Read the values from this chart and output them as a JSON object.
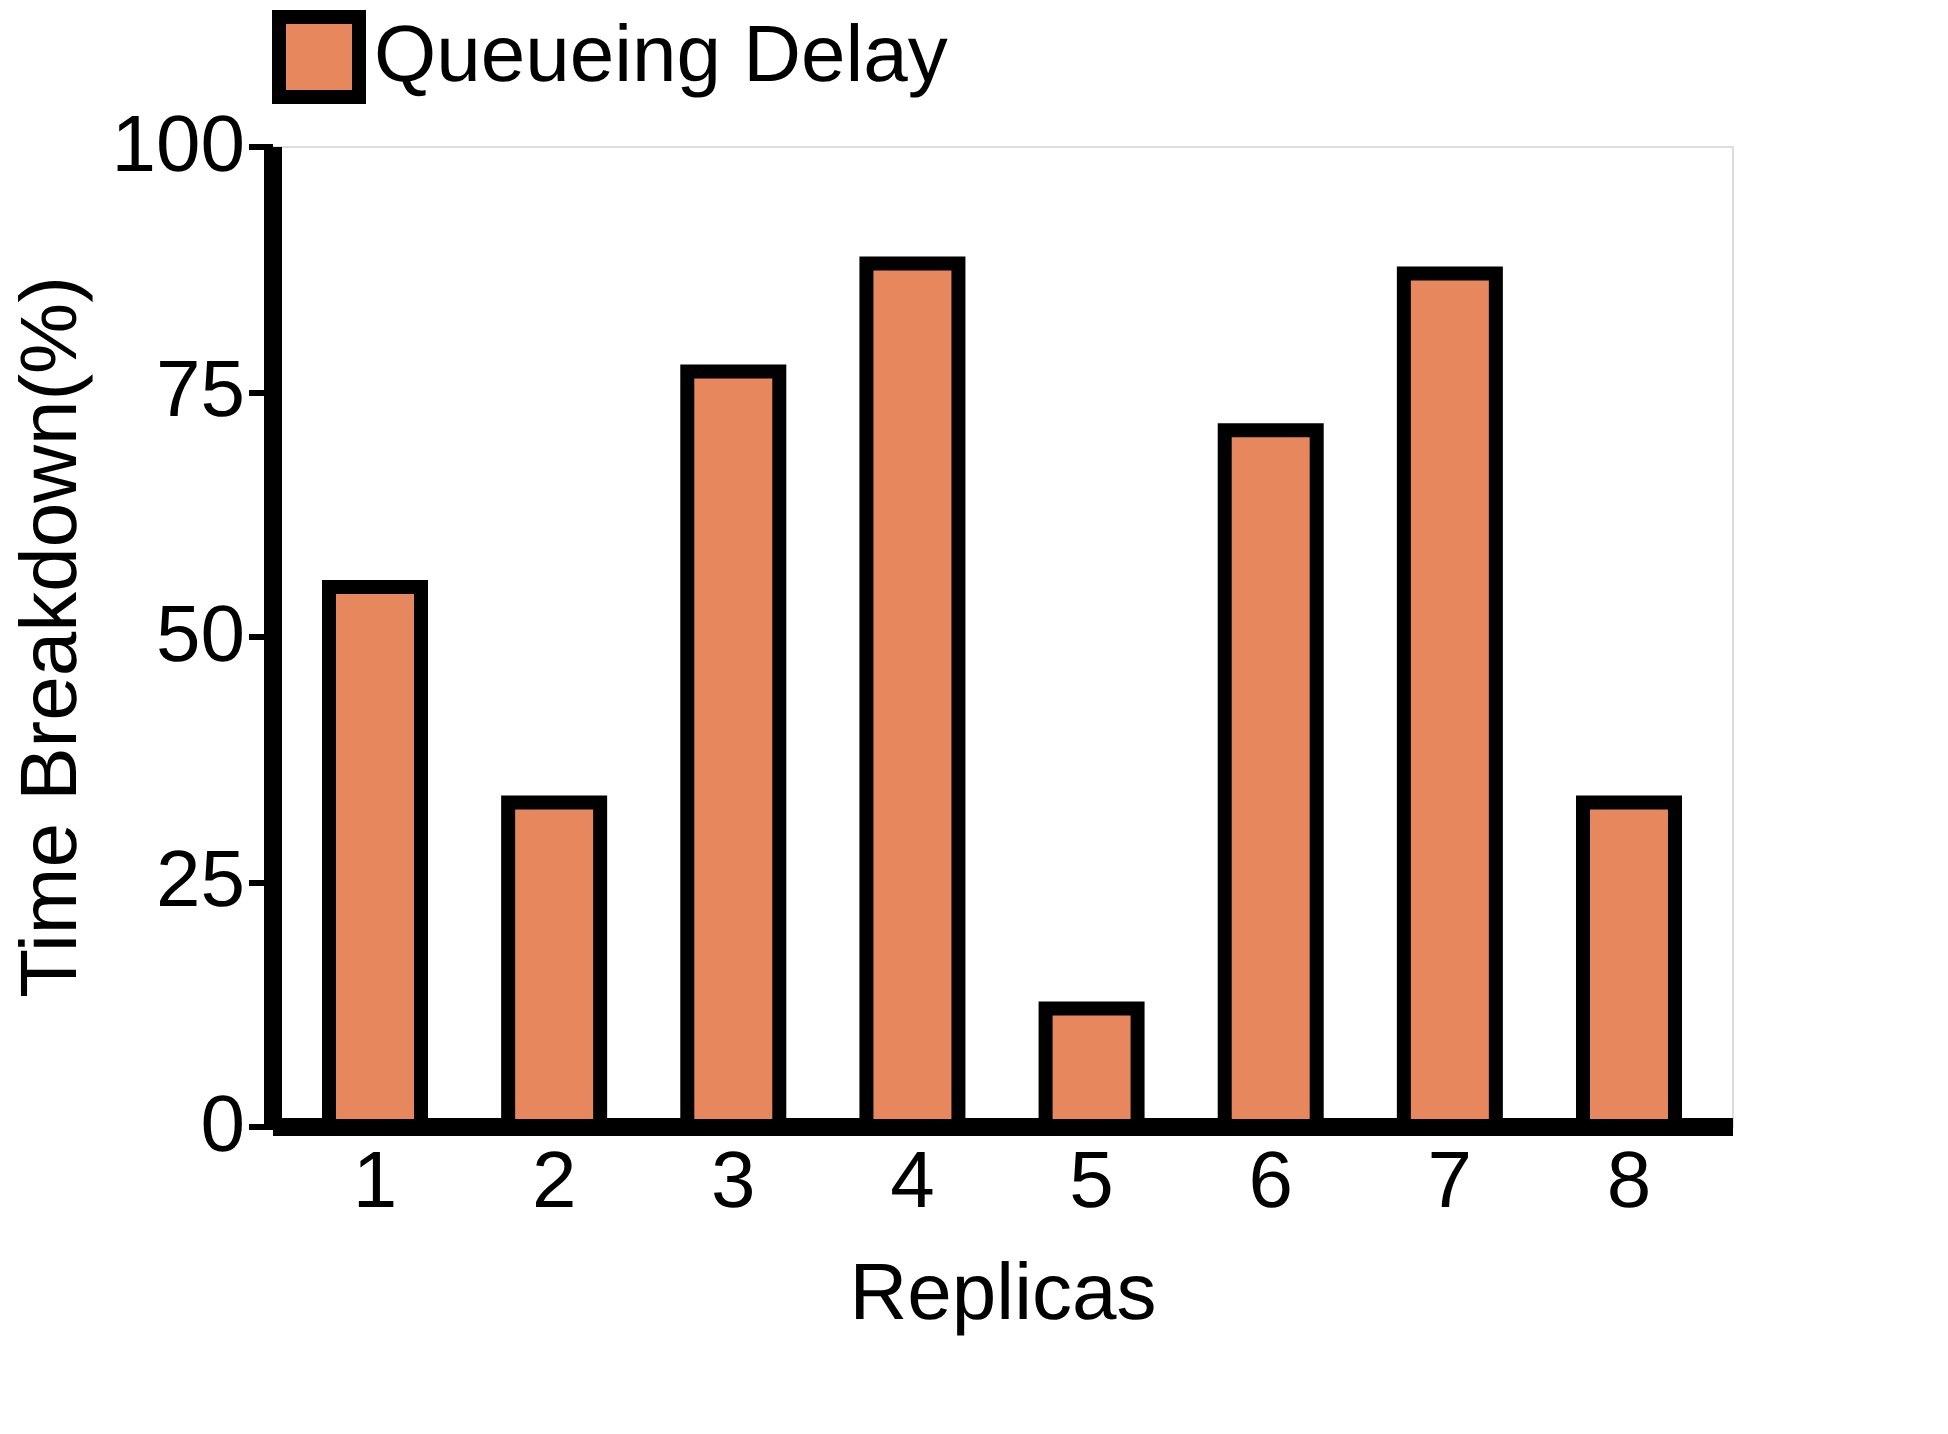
{
  "chart_data": {
    "type": "bar",
    "xlabel": "Replicas",
    "ylabel": "Time Breakdown(%)",
    "categories": [
      "1",
      "2",
      "3",
      "4",
      "5",
      "6",
      "7",
      "8"
    ],
    "series": [
      {
        "name": "Queueing Delay",
        "color": "#e6875e",
        "values": [
          55,
          33,
          77,
          88,
          12,
          71,
          87,
          33
        ]
      }
    ],
    "ylim": [
      0,
      100
    ],
    "yticks": [
      0,
      25,
      50,
      75,
      100
    ],
    "grid": false,
    "legend": "top"
  }
}
